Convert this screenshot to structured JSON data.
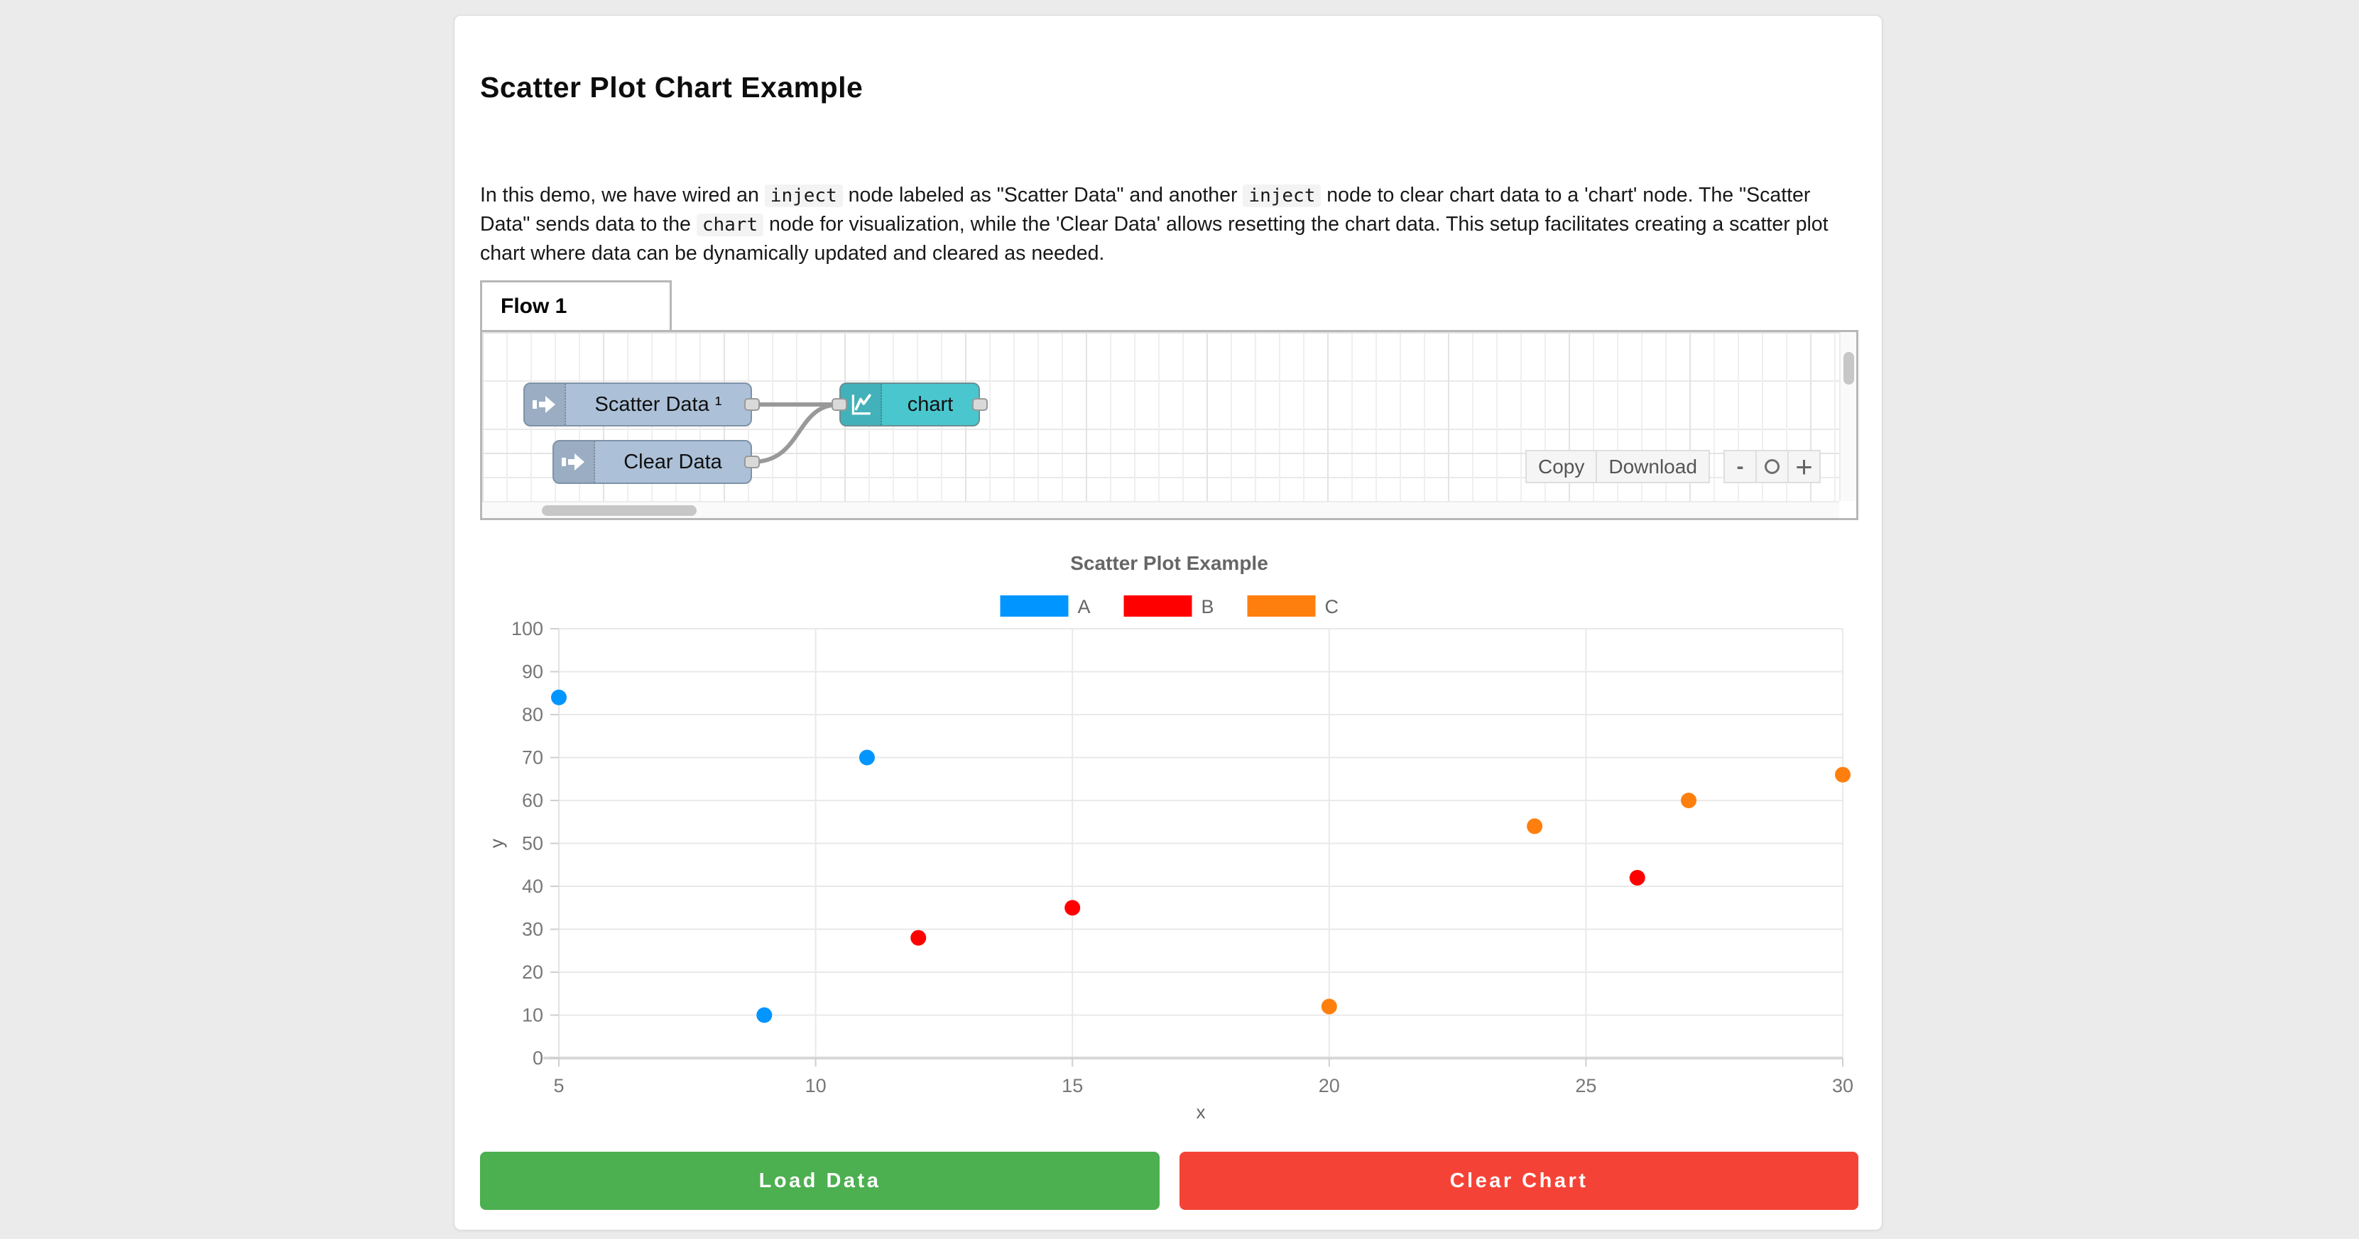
{
  "page": {
    "title": "Scatter Plot Chart Example"
  },
  "description": {
    "segments": [
      {
        "type": "text",
        "value": "In this demo, we have wired an "
      },
      {
        "type": "code",
        "value": "inject"
      },
      {
        "type": "text",
        "value": " node labeled as \"Scatter Data\" and another "
      },
      {
        "type": "code",
        "value": "inject"
      },
      {
        "type": "text",
        "value": " node to clear chart data to a 'chart' node. The \"Scatter Data\" sends data to the "
      },
      {
        "type": "code",
        "value": "chart"
      },
      {
        "type": "text",
        "value": " node for visualization, while the 'Clear Data' allows resetting the chart data. This setup facilitates creating a scatter plot chart where data can be dynamically updated and cleared as needed."
      }
    ]
  },
  "flow": {
    "tab_label": "Flow 1",
    "nodes": [
      {
        "label": "Scatter Data ¹",
        "type": "inject"
      },
      {
        "label": "Clear Data",
        "type": "inject"
      },
      {
        "label": "chart",
        "type": "chart"
      }
    ],
    "node_colors": {
      "inject_body": "#acc1d8",
      "chart_body": "#4ac6ce",
      "wire": "#999999"
    },
    "toolbar": {
      "copy_label": "Copy",
      "download_label": "Download"
    },
    "zoom": {
      "zoom_out_label": "-",
      "zoom_reset_icon": "circle-icon",
      "zoom_in_label": "+"
    }
  },
  "chart_data": {
    "type": "scatter",
    "title": "Scatter Plot Example",
    "xlabel": "x",
    "ylabel": "y",
    "xlim": [
      5,
      30
    ],
    "ylim": [
      0,
      100
    ],
    "x_ticks": [
      5,
      10,
      15,
      20,
      25,
      30
    ],
    "y_ticks": [
      0,
      10,
      20,
      30,
      40,
      50,
      60,
      70,
      80,
      90,
      100
    ],
    "grid": true,
    "legend_position": "top",
    "series": [
      {
        "name": "A",
        "color": "#0095FF",
        "points": [
          [
            5,
            84
          ],
          [
            9,
            10
          ],
          [
            11,
            70
          ]
        ]
      },
      {
        "name": "B",
        "color": "#FF0000",
        "points": [
          [
            12,
            28
          ],
          [
            15,
            35
          ],
          [
            26,
            42
          ]
        ]
      },
      {
        "name": "C",
        "color": "#FF7F0E",
        "points": [
          [
            20,
            12
          ],
          [
            24,
            54
          ],
          [
            27,
            60
          ],
          [
            30,
            66
          ]
        ]
      }
    ]
  },
  "actions": {
    "load_label": "Load Data",
    "load_color": "#4CAF50",
    "clear_label": "Clear Chart",
    "clear_color": "#F44336"
  }
}
